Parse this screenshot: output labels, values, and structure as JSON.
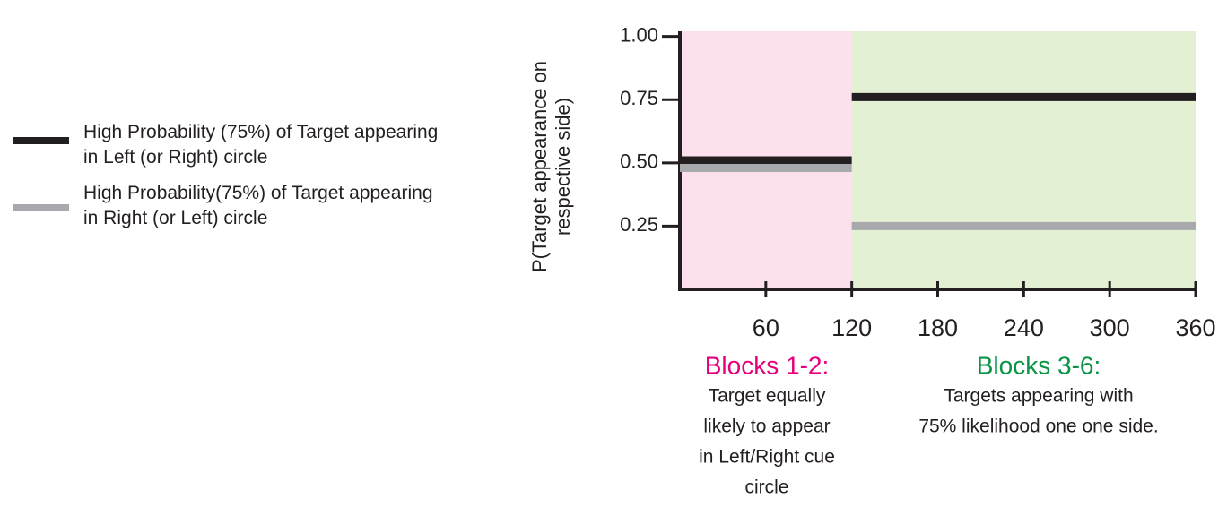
{
  "chart_data": {
    "type": "line",
    "ylabel": "P(Target appearance on respective side)",
    "xlim": [
      0,
      360
    ],
    "xticks": [
      60,
      120,
      180,
      240,
      300,
      360
    ],
    "ylim": [
      0,
      1.02
    ],
    "yticks": [
      {
        "value": 0.25,
        "label": "0.25"
      },
      {
        "value": 0.5,
        "label": "0.50"
      },
      {
        "value": 0.75,
        "label": "0.75"
      },
      {
        "value": 1,
        "label": "1.00"
      }
    ],
    "x": [
      0,
      120,
      120,
      120,
      360
    ],
    "series": [
      {
        "name": "High Probability (75%) of Target appearing in Left (or Right) circle",
        "color": "#231f20",
        "values": [
          0.51,
          0.51,
          null,
          0.76,
          0.76
        ]
      },
      {
        "name": "High Probability(75%) of Target appearing in Right (or Left) circle",
        "color": "#a7a9ac",
        "values": [
          0.48,
          0.48,
          null,
          0.25,
          0.25
        ]
      }
    ],
    "regions": [
      {
        "x": [
          0,
          120
        ],
        "color": "#fde0ed",
        "title": "Blocks 1-2:",
        "title_color": "#e6007e",
        "text": [
          "Target equally",
          "likely to appear",
          "in Left/Right cue",
          "circle"
        ]
      },
      {
        "x": [
          120,
          360
        ],
        "color": "#e3f0d3",
        "title": "Blocks 3-6:",
        "title_color": "#0a9445",
        "text": [
          "Targets appearing with",
          "75% likelihood one one side."
        ]
      }
    ]
  }
}
